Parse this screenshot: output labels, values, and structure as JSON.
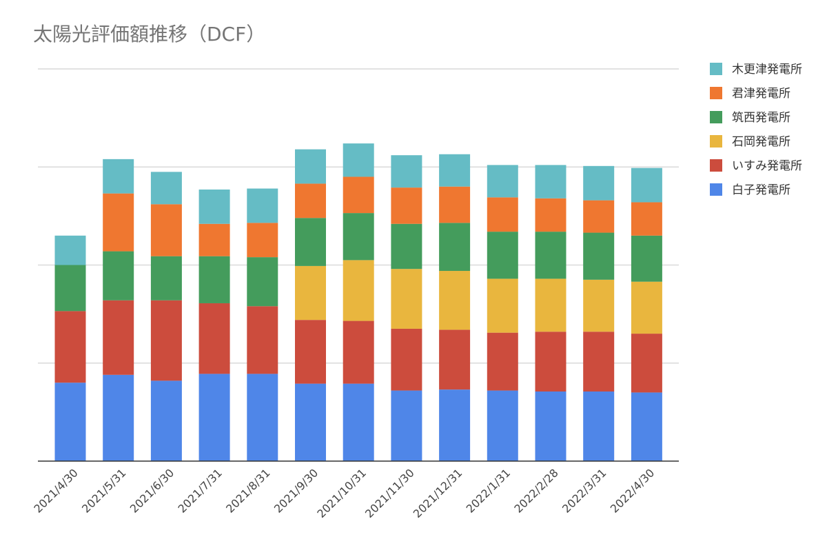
{
  "chart_data": {
    "type": "bar",
    "stacked": true,
    "title": "太陽光評価額推移（DCF）",
    "xlabel": "",
    "ylabel": "",
    "ylim": [
      0,
      4
    ],
    "grid": true,
    "legend_position": "right",
    "categories": [
      "2021/4/30",
      "2021/5/31",
      "2021/6/30",
      "2021/7/31",
      "2021/8/31",
      "2021/9/30",
      "2021/10/31",
      "2021/11/30",
      "2021/12/31",
      "2022/1/31",
      "2022/2/28",
      "2022/3/31",
      "2022/4/30"
    ],
    "series": [
      {
        "name": "白子発電所",
        "color": "#4f86e8",
        "values": [
          0.8,
          0.88,
          0.82,
          0.89,
          0.89,
          0.79,
          0.79,
          0.72,
          0.73,
          0.72,
          0.71,
          0.71,
          0.7
        ]
      },
      {
        "name": "いすみ発電所",
        "color": "#cc4c3d",
        "values": [
          0.73,
          0.76,
          0.82,
          0.72,
          0.69,
          0.65,
          0.64,
          0.63,
          0.61,
          0.59,
          0.61,
          0.61,
          0.6
        ]
      },
      {
        "name": "石岡発電所",
        "color": "#e9b63e",
        "values": [
          0,
          0,
          0,
          0,
          0,
          0.55,
          0.62,
          0.61,
          0.6,
          0.55,
          0.54,
          0.53,
          0.53
        ]
      },
      {
        "name": "筑西発電所",
        "color": "#449c5c",
        "values": [
          0.47,
          0.5,
          0.45,
          0.48,
          0.5,
          0.49,
          0.48,
          0.46,
          0.49,
          0.48,
          0.48,
          0.48,
          0.47
        ]
      },
      {
        "name": "君津発電所",
        "color": "#ef7730",
        "values": [
          0,
          0.59,
          0.53,
          0.33,
          0.35,
          0.35,
          0.37,
          0.37,
          0.37,
          0.35,
          0.34,
          0.33,
          0.34
        ]
      },
      {
        "name": "木更津発電所",
        "color": "#65bcc5",
        "values": [
          0.3,
          0.35,
          0.33,
          0.35,
          0.35,
          0.35,
          0.34,
          0.33,
          0.33,
          0.33,
          0.34,
          0.35,
          0.35
        ]
      }
    ]
  }
}
